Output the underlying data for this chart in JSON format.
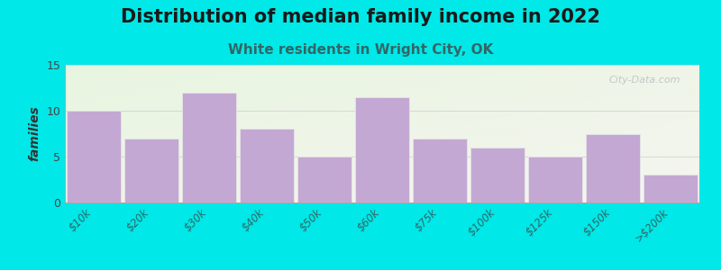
{
  "title": "Distribution of median family income in 2022",
  "subtitle": "White residents in Wright City, OK",
  "categories": [
    "$10k",
    "$20k",
    "$30k",
    "$40k",
    "$50k",
    "$60k",
    "$75k",
    "$100k",
    "$125k",
    "$150k",
    ">$200k"
  ],
  "values": [
    10,
    7,
    12,
    8,
    5,
    11.5,
    7,
    6,
    5,
    7.5,
    3
  ],
  "bar_color": "#c4a8d4",
  "bar_edge_color": "#e8e8e8",
  "background_outer": "#00e8e8",
  "ylabel": "families",
  "ylim": [
    0,
    15
  ],
  "yticks": [
    0,
    5,
    10,
    15
  ],
  "title_fontsize": 15,
  "subtitle_fontsize": 11,
  "subtitle_color": "#336666",
  "tick_color": "#336666",
  "watermark": "City-Data.com"
}
